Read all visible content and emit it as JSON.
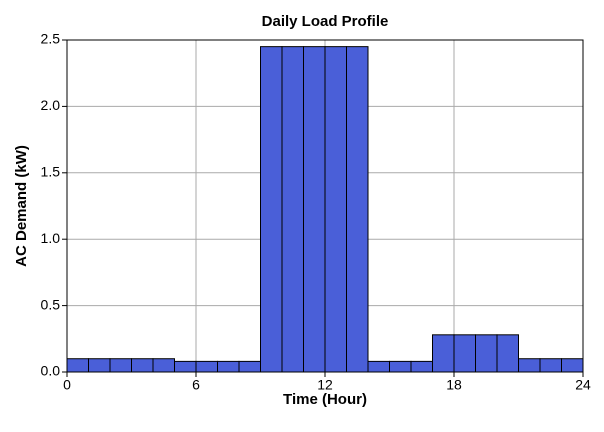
{
  "chart_data": {
    "type": "histogram",
    "title": "Daily Load Profile",
    "x_label": "Time (Hour)",
    "y_label": "AC Demand (kW)",
    "bins": [
      0,
      1,
      2,
      3,
      4,
      5,
      6,
      7,
      8,
      9,
      10,
      11,
      12,
      13,
      14,
      15,
      16,
      17,
      18,
      19,
      20,
      21,
      22,
      23,
      24
    ],
    "values": [
      0.1,
      0.1,
      0.1,
      0.1,
      0.1,
      0.08,
      0.08,
      0.08,
      0.08,
      2.45,
      2.45,
      2.45,
      2.45,
      2.45,
      0.08,
      0.08,
      0.08,
      0.28,
      0.28,
      0.28,
      0.28,
      0.1,
      0.1,
      0.1
    ],
    "color": "#4a5fd8",
    "xlim": [
      0,
      24
    ],
    "xticks": [
      0,
      6,
      12,
      18,
      24
    ],
    "ylim": [
      0,
      2.5
    ],
    "yticks": [
      {
        "value": 0,
        "label": "0.0"
      },
      0.5,
      {
        "value": 1,
        "label": "1.0"
      },
      1.5,
      {
        "value": 2,
        "label": "2.0"
      },
      2.5
    ],
    "grid": true
  }
}
